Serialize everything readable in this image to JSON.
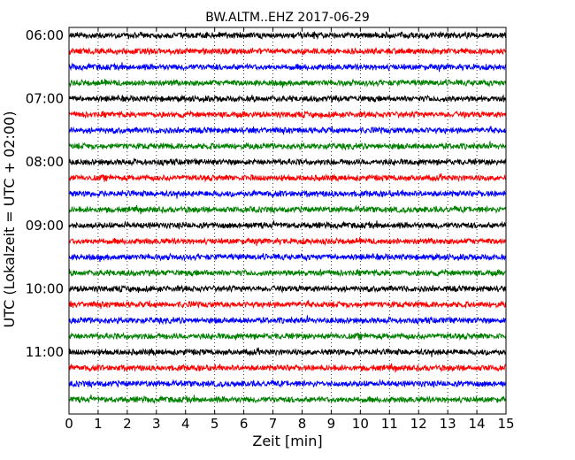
{
  "chart_data": {
    "type": "line",
    "title": "BW.ALTM..EHZ 2017-06-29",
    "xlabel": "Zeit  [min]",
    "ylabel": "UTC (Lokalzeit = UTC + 02:00)",
    "xlim": [
      0,
      15
    ],
    "x_ticks": [
      0,
      1,
      2,
      3,
      4,
      5,
      6,
      7,
      8,
      9,
      10,
      11,
      12,
      13,
      14,
      15
    ],
    "y_ticks": [
      "06:00",
      "07:00",
      "08:00",
      "09:00",
      "10:00",
      "11:00"
    ],
    "grid": {
      "x": true,
      "y": false,
      "style": "dotted"
    },
    "trace_colors": [
      "#000000",
      "#ff0000",
      "#0000ff",
      "#008000"
    ],
    "trace_start_times": [
      "06:00",
      "06:15",
      "06:30",
      "06:45",
      "07:00",
      "07:15",
      "07:30",
      "07:45",
      "08:00",
      "08:15",
      "08:30",
      "08:45",
      "09:00",
      "09:15",
      "09:30",
      "09:45",
      "10:00",
      "10:15",
      "10:30",
      "10:45",
      "11:00",
      "11:15",
      "11:30",
      "11:45"
    ],
    "trace_minutes": 15
  }
}
